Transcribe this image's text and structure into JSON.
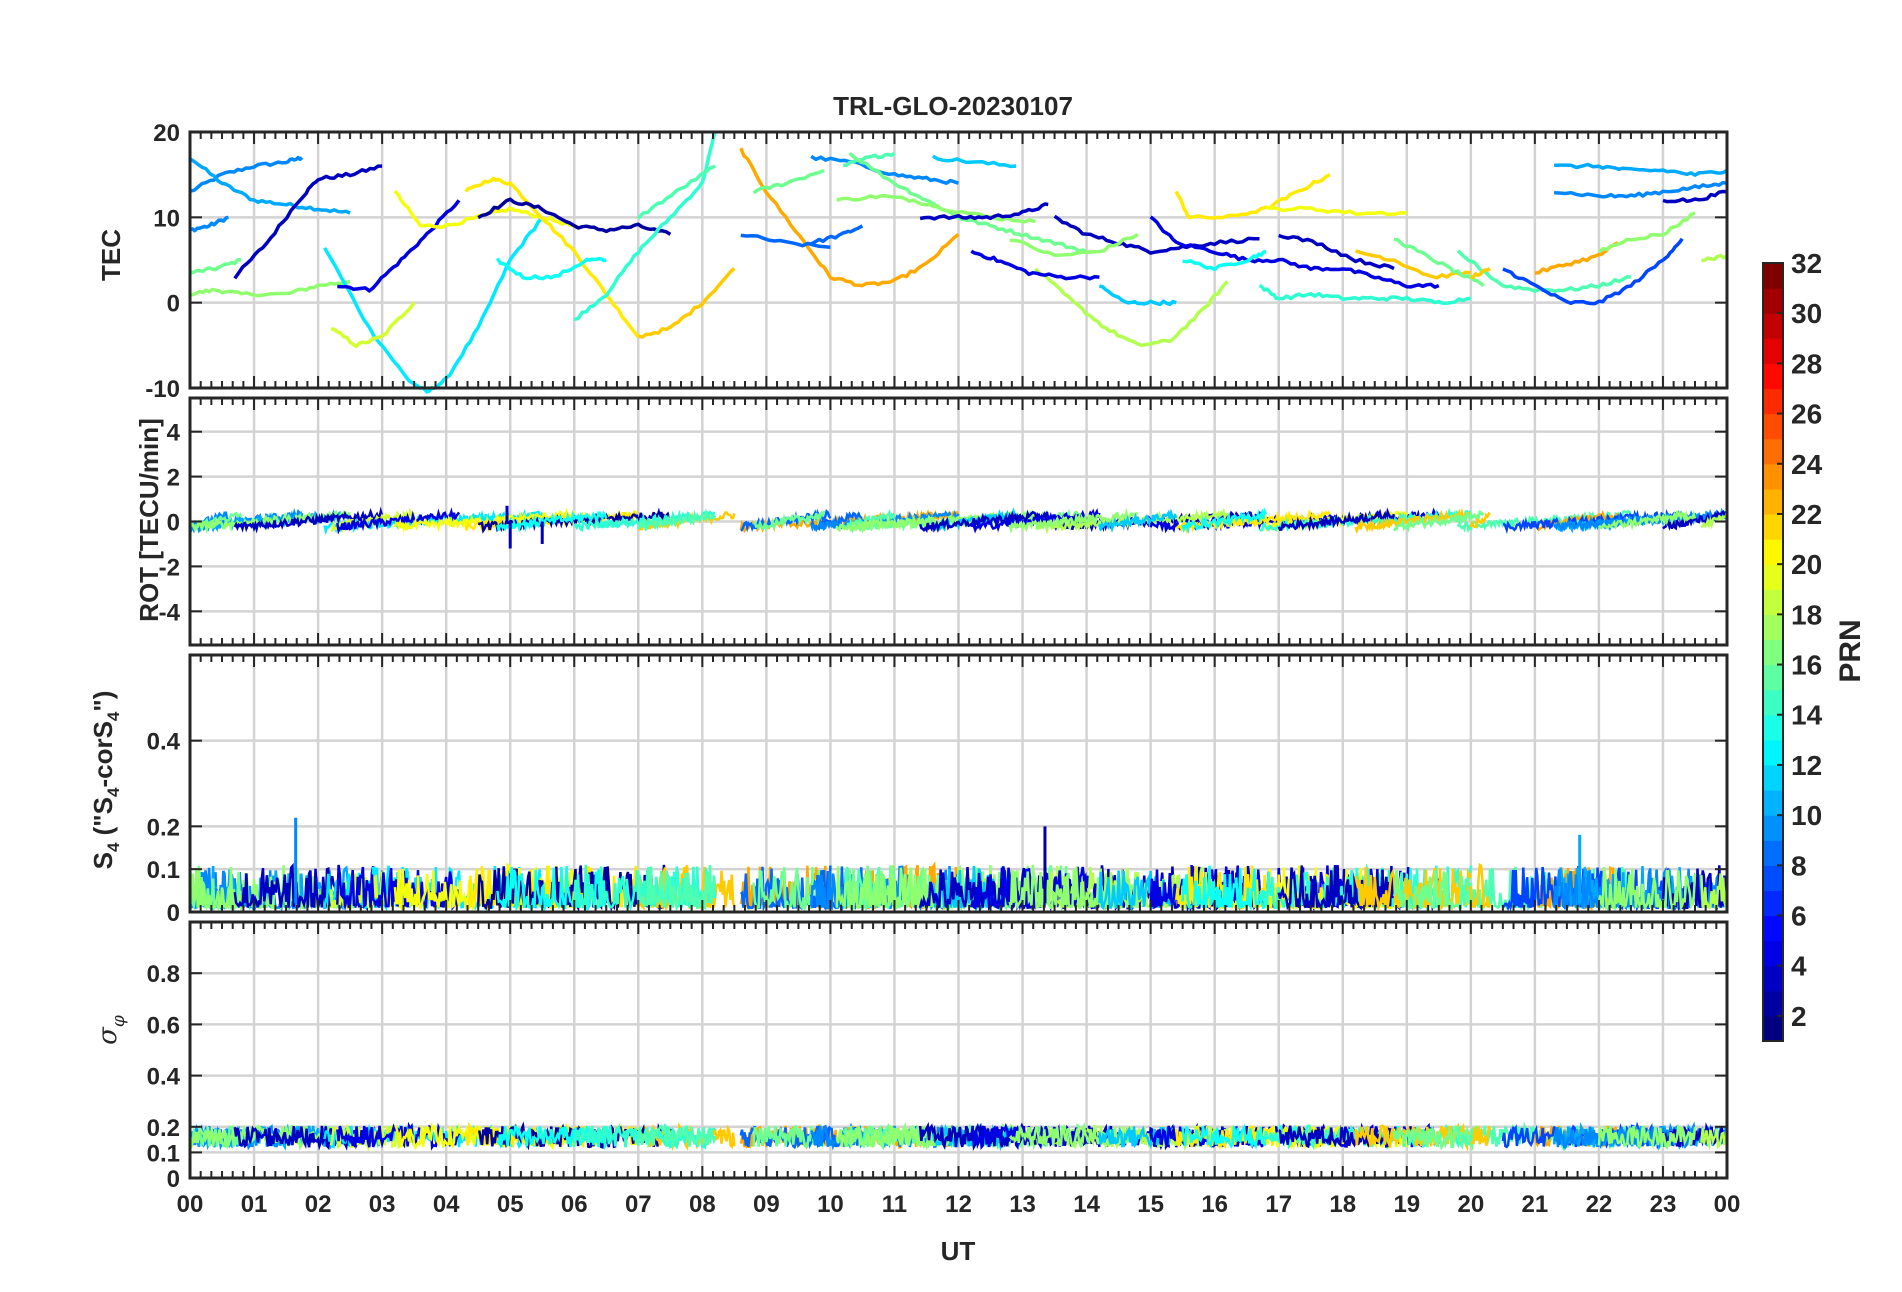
{
  "title": "TRL-GLO-20230107",
  "chart_data": [
    {
      "type": "line",
      "panel": "TEC",
      "ylabel": "TEC",
      "ylim": [
        -10,
        20
      ],
      "yticks": [
        -10,
        0,
        10,
        20
      ],
      "ytick_labels": [
        "-10",
        "0",
        "10",
        "20"
      ],
      "series": [
        {
          "prn": 9,
          "x": [
            0.0,
            0.5,
            1.0,
            1.5,
            1.75
          ],
          "values": [
            13,
            15,
            16,
            16.5,
            17
          ]
        },
        {
          "prn": 10,
          "x": [
            0.0,
            0.5,
            1.0,
            1.5,
            2.0,
            2.5
          ],
          "values": [
            17,
            14,
            12,
            11.5,
            11,
            10.5
          ]
        },
        {
          "prn": 9,
          "x": [
            0.0,
            0.3,
            0.6
          ],
          "values": [
            8.5,
            9,
            10
          ]
        },
        {
          "prn": 16,
          "x": [
            0.0,
            0.4,
            0.8
          ],
          "values": [
            3.5,
            4,
            5
          ]
        },
        {
          "prn": 17,
          "x": [
            0.0,
            0.4,
            0.8,
            1.5,
            2.0,
            2.5
          ],
          "values": [
            1,
            1.5,
            1,
            1,
            2,
            2.5
          ]
        },
        {
          "prn": 3,
          "x": [
            0.7,
            1.2,
            1.7,
            2.0,
            2.5,
            3.0
          ],
          "values": [
            3,
            7,
            12,
            14.5,
            15,
            16
          ]
        },
        {
          "prn": 12,
          "x": [
            2.1,
            2.8,
            3.4,
            3.7,
            4.0,
            4.5,
            5.0,
            5.5
          ],
          "values": [
            6.5,
            -3,
            -9,
            -10.5,
            -9,
            -3,
            5,
            10
          ]
        },
        {
          "prn": 19,
          "x": [
            2.2,
            2.6,
            3.0,
            3.5
          ],
          "values": [
            -3,
            -5,
            -4,
            0
          ]
        },
        {
          "prn": 4,
          "x": [
            2.3,
            2.8,
            3.3,
            3.7,
            4.2
          ],
          "values": [
            2,
            1.5,
            5,
            8,
            12
          ]
        },
        {
          "prn": 20,
          "x": [
            3.2,
            3.6,
            4.0,
            4.5,
            5.0,
            5.5,
            6.0
          ],
          "values": [
            13,
            9,
            9,
            10,
            11,
            10,
            9
          ]
        },
        {
          "prn": 21,
          "x": [
            4.3,
            4.7,
            5.0,
            5.5,
            6.0,
            6.5,
            7.0
          ],
          "values": [
            13,
            14.5,
            14,
            10,
            6,
            1,
            -4
          ]
        },
        {
          "prn": 2,
          "x": [
            4.5,
            5.0,
            5.5,
            6.0,
            6.5,
            7.0,
            7.5
          ],
          "values": [
            10,
            12,
            11,
            9,
            8.5,
            9,
            8
          ]
        },
        {
          "prn": 13,
          "x": [
            4.8,
            5.2,
            5.7,
            6.2,
            6.5
          ],
          "values": [
            5,
            3,
            3,
            5,
            5
          ]
        },
        {
          "prn": 22,
          "x": [
            7.0,
            7.5,
            8.0,
            8.5
          ],
          "values": [
            -4,
            -3,
            0,
            4
          ]
        },
        {
          "prn": 14,
          "x": [
            6.0,
            6.5,
            7.0,
            7.5,
            8.0,
            8.2
          ],
          "values": [
            -2,
            1,
            6,
            10,
            14,
            20
          ]
        },
        {
          "prn": 15,
          "x": [
            7.0,
            7.6,
            8.2
          ],
          "values": [
            10,
            13,
            16
          ]
        },
        {
          "prn": 23,
          "x": [
            8.6,
            9.0,
            9.6,
            10.0,
            10.5,
            11.0,
            11.5,
            12.0
          ],
          "values": [
            18,
            13,
            7,
            3,
            2,
            2.5,
            4.5,
            8
          ]
        },
        {
          "prn": 8,
          "x": [
            8.6,
            9.3,
            10.0
          ],
          "values": [
            8,
            7,
            6.5
          ]
        },
        {
          "prn": 16,
          "x": [
            8.8,
            9.3,
            9.9
          ],
          "values": [
            13,
            14,
            15.5
          ]
        },
        {
          "prn": 8,
          "x": [
            9.7,
            10.2,
            10.5
          ],
          "values": [
            7,
            8,
            9
          ]
        },
        {
          "prn": 9,
          "x": [
            9.7,
            10.3,
            11.0,
            11.5,
            12.0
          ],
          "values": [
            17,
            16.5,
            15,
            14.5,
            14
          ]
        },
        {
          "prn": 15,
          "x": [
            10.2,
            10.6,
            11.0
          ],
          "values": [
            16,
            17,
            17.5
          ]
        },
        {
          "prn": 16,
          "x": [
            10.3,
            11.0,
            11.5,
            12.0,
            12.5,
            13.0,
            13.5,
            14.0
          ],
          "values": [
            17.5,
            14,
            12,
            10,
            9,
            8,
            7,
            6
          ]
        },
        {
          "prn": 17,
          "x": [
            10.1,
            10.8,
            11.3,
            11.8,
            12.5,
            13.2
          ],
          "values": [
            12,
            12.5,
            12,
            11,
            10,
            9.5
          ]
        },
        {
          "prn": 11,
          "x": [
            11.6,
            12.2,
            12.9
          ],
          "values": [
            17,
            16.5,
            16
          ]
        },
        {
          "prn": 3,
          "x": [
            11.4,
            12.0,
            12.5,
            13.0,
            13.4
          ],
          "values": [
            10,
            10,
            10,
            10.5,
            11.5
          ]
        },
        {
          "prn": 3,
          "x": [
            13.5,
            14.0,
            14.5,
            15.0,
            15.5,
            16.0,
            16.7
          ],
          "values": [
            10,
            8,
            7,
            6,
            6.5,
            7,
            7.5
          ]
        },
        {
          "prn": 18,
          "x": [
            13.2,
            13.8,
            14.3,
            14.8,
            15.3,
            15.8,
            16.2
          ],
          "values": [
            4,
            0,
            -3,
            -5,
            -4.5,
            -1,
            2.5
          ]
        },
        {
          "prn": 4,
          "x": [
            12.2,
            12.6,
            13.1,
            13.6,
            14.2
          ],
          "values": [
            6,
            5,
            3.5,
            3,
            3
          ]
        },
        {
          "prn": 17,
          "x": [
            12.8,
            13.5,
            14.2,
            14.8
          ],
          "values": [
            7.5,
            5.5,
            6,
            8
          ]
        },
        {
          "prn": 11,
          "x": [
            14.2,
            14.6,
            15.0,
            15.4
          ],
          "values": [
            2,
            0,
            0,
            0
          ]
        },
        {
          "prn": 4,
          "x": [
            15.0,
            15.4,
            16.0,
            16.5,
            17.0,
            17.5,
            18.0,
            18.5,
            19.0,
            19.5
          ],
          "values": [
            10,
            7,
            6,
            5,
            5,
            4,
            4,
            3,
            2,
            2
          ]
        },
        {
          "prn": 21,
          "x": [
            15.4,
            15.6,
            16.2,
            16.8,
            17.3,
            17.8
          ],
          "values": [
            13,
            10,
            10,
            11,
            13,
            15
          ]
        },
        {
          "prn": 13,
          "x": [
            15.5,
            16.0,
            16.5,
            16.8
          ],
          "values": [
            5,
            4,
            5,
            6
          ]
        },
        {
          "prn": 20,
          "x": [
            16.8,
            17.5,
            18.2,
            19.0
          ],
          "values": [
            11,
            11,
            10.5,
            10.5
          ]
        },
        {
          "prn": 14,
          "x": [
            16.7,
            17.0,
            17.5,
            18.0,
            18.5,
            19.0,
            19.5,
            20.0
          ],
          "values": [
            2,
            0.5,
            1,
            0.5,
            0.5,
            0.5,
            0,
            0.5
          ]
        },
        {
          "prn": 3,
          "x": [
            17.0,
            17.6,
            18.2,
            18.8
          ],
          "values": [
            8,
            7,
            5,
            4
          ]
        },
        {
          "prn": 22,
          "x": [
            18.2,
            18.8,
            19.4,
            20.0
          ],
          "values": [
            6,
            5,
            3,
            3.5
          ]
        },
        {
          "prn": 16,
          "x": [
            18.8,
            19.3,
            19.8,
            20.2
          ],
          "values": [
            7.5,
            5.5,
            3.5,
            2
          ]
        },
        {
          "prn": 15,
          "x": [
            19.8,
            20.5,
            21.0,
            21.5,
            22.0,
            22.5
          ],
          "values": [
            6,
            2,
            1.5,
            1.5,
            2,
            3
          ]
        },
        {
          "prn": 22,
          "x": [
            20.0,
            20.3
          ],
          "values": [
            3,
            4
          ]
        },
        {
          "prn": 23,
          "x": [
            21.0,
            21.5,
            22.0,
            22.3
          ],
          "values": [
            3.5,
            4.5,
            5.5,
            7
          ]
        },
        {
          "prn": 7,
          "x": [
            20.5,
            21.0,
            21.5,
            22.0,
            22.5,
            23.0,
            23.3
          ],
          "values": [
            4,
            2,
            0,
            0,
            2,
            5,
            7.5
          ]
        },
        {
          "prn": 10,
          "x": [
            21.3,
            22.0,
            22.5,
            23.0,
            23.5,
            24.0
          ],
          "values": [
            16,
            16,
            15.5,
            15.5,
            15,
            15.5
          ]
        },
        {
          "prn": 9,
          "x": [
            21.3,
            22.0,
            22.5,
            23.0,
            23.5,
            24.0
          ],
          "values": [
            13,
            12.5,
            12.5,
            13,
            13.5,
            14
          ]
        },
        {
          "prn": 3,
          "x": [
            23.0,
            23.5,
            24.0
          ],
          "values": [
            12,
            12,
            13
          ]
        },
        {
          "prn": 17,
          "x": [
            22.0,
            22.5,
            23.0,
            23.5
          ],
          "values": [
            6,
            7.5,
            8,
            10.5
          ]
        },
        {
          "prn": 18,
          "x": [
            23.6,
            24.0
          ],
          "values": [
            5,
            5.5
          ]
        }
      ]
    },
    {
      "type": "line",
      "panel": "ROT",
      "ylabel": "ROT [TECU/min]",
      "ylim": [
        -5.5,
        5.5
      ],
      "yticks": [
        -4,
        -2,
        0,
        2,
        4
      ],
      "ytick_labels": [
        "-4",
        "-2",
        "0",
        "2",
        "4"
      ],
      "typical_range": [
        -0.8,
        0.6
      ],
      "spikes": [
        {
          "x": 5.0,
          "value": -1.2
        },
        {
          "x": 5.5,
          "value": -1.0
        },
        {
          "x": 4.95,
          "value": 0.7
        }
      ]
    },
    {
      "type": "line",
      "panel": "S4",
      "ylabel_main": "S",
      "ylabel_sub1": "4",
      "ylabel_mid": " (\"S",
      "ylabel_sub2": "4",
      "ylabel_mid2": "-corS",
      "ylabel_sub3": "4",
      "ylabel_end": "\")",
      "ylim": [
        0,
        0.6
      ],
      "yticks": [
        0,
        0.1,
        0.2,
        0.4
      ],
      "ytick_labels": [
        "0",
        "0.1",
        "0.2",
        "0.4"
      ],
      "typical_range": [
        0.0,
        0.1
      ],
      "peaks": [
        {
          "x": 1.65,
          "value": 0.22
        },
        {
          "x": 13.35,
          "value": 0.2
        },
        {
          "x": 21.7,
          "value": 0.18
        }
      ]
    },
    {
      "type": "line",
      "panel": "sigma_phi",
      "ylabel_main": "σ",
      "ylabel_sub": "φ",
      "ylim": [
        0,
        1.0
      ],
      "yticks": [
        0,
        0.1,
        0.2,
        0.4,
        0.6,
        0.8
      ],
      "ytick_labels": [
        "0",
        "0.1",
        "0.2",
        "0.4",
        "0.6",
        "0.8"
      ],
      "typical_range": [
        0.1,
        0.22
      ]
    }
  ],
  "xaxis": {
    "label": "UT",
    "xlim": [
      0,
      24
    ],
    "tick_labels": [
      "00",
      "01",
      "02",
      "03",
      "04",
      "05",
      "06",
      "07",
      "08",
      "09",
      "10",
      "11",
      "12",
      "13",
      "14",
      "15",
      "16",
      "17",
      "18",
      "19",
      "20",
      "21",
      "22",
      "23",
      "00"
    ]
  },
  "colorbar": {
    "label": "PRN",
    "range": [
      1,
      32
    ],
    "tick_labels": [
      "2",
      "4",
      "6",
      "8",
      "10",
      "12",
      "14",
      "16",
      "18",
      "20",
      "22",
      "24",
      "26",
      "28",
      "30",
      "32"
    ]
  }
}
